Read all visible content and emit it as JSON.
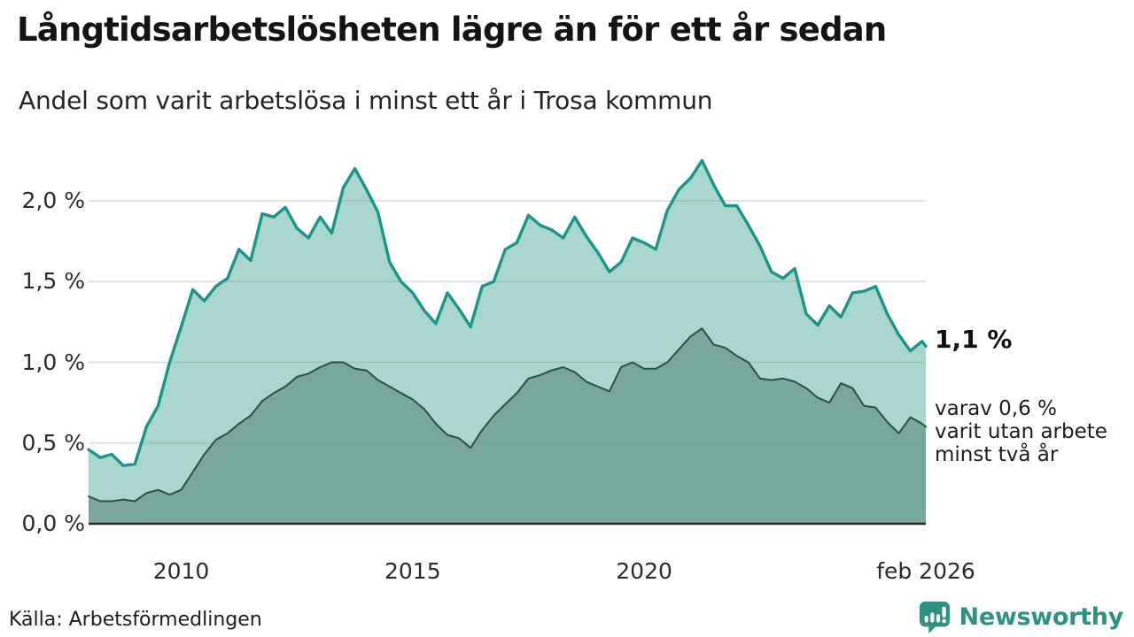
{
  "header": {
    "title": "Långtidsarbetslösheten lägre än för ett år sedan",
    "subtitle": "Andel som varit arbetslösa i minst ett år i Trosa kommun"
  },
  "chart_data": {
    "type": "area",
    "title": "Långtidsarbetslösheten lägre än för ett år sedan",
    "subtitle": "Andel som varit arbetslösa i minst ett år i Trosa kommun",
    "unit": "%",
    "ylim": [
      0,
      2.35
    ],
    "grid": true,
    "grid_color": "#8f9a97",
    "axis_color": "#1f2a28",
    "x_years": [
      2008.0,
      2008.25,
      2008.5,
      2008.75,
      2009.0,
      2009.25,
      2009.5,
      2009.75,
      2010.0,
      2010.25,
      2010.5,
      2010.75,
      2011.0,
      2011.25,
      2011.5,
      2011.75,
      2012.0,
      2012.25,
      2012.5,
      2012.75,
      2013.0,
      2013.25,
      2013.5,
      2013.75,
      2014.0,
      2014.25,
      2014.5,
      2014.75,
      2015.0,
      2015.25,
      2015.5,
      2015.75,
      2016.0,
      2016.25,
      2016.5,
      2016.75,
      2017.0,
      2017.25,
      2017.5,
      2017.75,
      2018.0,
      2018.25,
      2018.5,
      2018.75,
      2019.0,
      2019.25,
      2019.5,
      2019.75,
      2020.0,
      2020.25,
      2020.5,
      2020.75,
      2021.0,
      2021.25,
      2021.5,
      2021.75,
      2022.0,
      2022.25,
      2022.5,
      2022.75,
      2023.0,
      2023.25,
      2023.5,
      2023.75,
      2024.0,
      2024.25,
      2024.5,
      2024.75,
      2025.0,
      2025.25,
      2025.5,
      2025.75,
      2026.0,
      2026.083
    ],
    "series": [
      {
        "name": "arbetslösa minst ett år",
        "line_color": "#1a9688",
        "fill_color": "#a9d6ce",
        "line_width": 3.4,
        "values": [
          0.46,
          0.41,
          0.43,
          0.36,
          0.37,
          0.6,
          0.73,
          1.0,
          1.22,
          1.45,
          1.38,
          1.47,
          1.52,
          1.7,
          1.63,
          1.92,
          1.9,
          1.96,
          1.83,
          1.77,
          1.9,
          1.8,
          2.08,
          2.2,
          2.07,
          1.93,
          1.62,
          1.5,
          1.43,
          1.32,
          1.24,
          1.43,
          1.33,
          1.22,
          1.47,
          1.5,
          1.7,
          1.74,
          1.91,
          1.85,
          1.82,
          1.77,
          1.9,
          1.78,
          1.68,
          1.56,
          1.62,
          1.77,
          1.74,
          1.7,
          1.94,
          2.07,
          2.14,
          2.25,
          2.1,
          1.97,
          1.97,
          1.85,
          1.72,
          1.56,
          1.52,
          1.58,
          1.3,
          1.23,
          1.35,
          1.28,
          1.43,
          1.44,
          1.47,
          1.3,
          1.17,
          1.07,
          1.13,
          1.1
        ]
      },
      {
        "name": "utan arbete minst två år",
        "line_color": "#2d4d45",
        "fill_color": "#78a79d",
        "line_width": 2.0,
        "values": [
          0.17,
          0.14,
          0.14,
          0.15,
          0.14,
          0.19,
          0.21,
          0.18,
          0.21,
          0.32,
          0.43,
          0.52,
          0.56,
          0.62,
          0.67,
          0.76,
          0.81,
          0.85,
          0.91,
          0.93,
          0.97,
          1.0,
          1.0,
          0.96,
          0.95,
          0.89,
          0.85,
          0.81,
          0.77,
          0.71,
          0.62,
          0.55,
          0.53,
          0.47,
          0.58,
          0.67,
          0.74,
          0.81,
          0.9,
          0.92,
          0.95,
          0.97,
          0.94,
          0.88,
          0.85,
          0.82,
          0.97,
          1.0,
          0.96,
          0.96,
          1.0,
          1.08,
          1.16,
          1.21,
          1.11,
          1.09,
          1.04,
          1.0,
          0.9,
          0.89,
          0.9,
          0.88,
          0.84,
          0.78,
          0.75,
          0.87,
          0.84,
          0.73,
          0.72,
          0.63,
          0.56,
          0.66,
          0.62,
          0.6
        ]
      }
    ],
    "yticks": [
      {
        "label": "2,0 %",
        "value": 2.0
      },
      {
        "label": "1,5 %",
        "value": 1.5
      },
      {
        "label": "1,0 %",
        "value": 1.0
      },
      {
        "label": "0,5 %",
        "value": 0.5
      },
      {
        "label": "0,0 %",
        "value": 0.0
      }
    ],
    "xticks": [
      {
        "label": "2010",
        "year": 2010
      },
      {
        "label": "2015",
        "year": 2015
      },
      {
        "label": "2020",
        "year": 2020
      },
      {
        "label": "feb 2026",
        "year": 2026.083
      }
    ],
    "annotations": {
      "end_label": "1,1 %",
      "note": "varav 0,6 %\nvarit utan arbete\nminst två år"
    }
  },
  "footer": {
    "source": "Källa: Arbetsförmedlingen",
    "brand": "Newsworthy"
  },
  "colors": {
    "accent_teal": "#1a9688",
    "fill_light": "#a9d6ce",
    "fill_dark": "#78a79d",
    "line_dark": "#2d4d45",
    "brand_teal": "#2e9183",
    "text": "#141414"
  }
}
